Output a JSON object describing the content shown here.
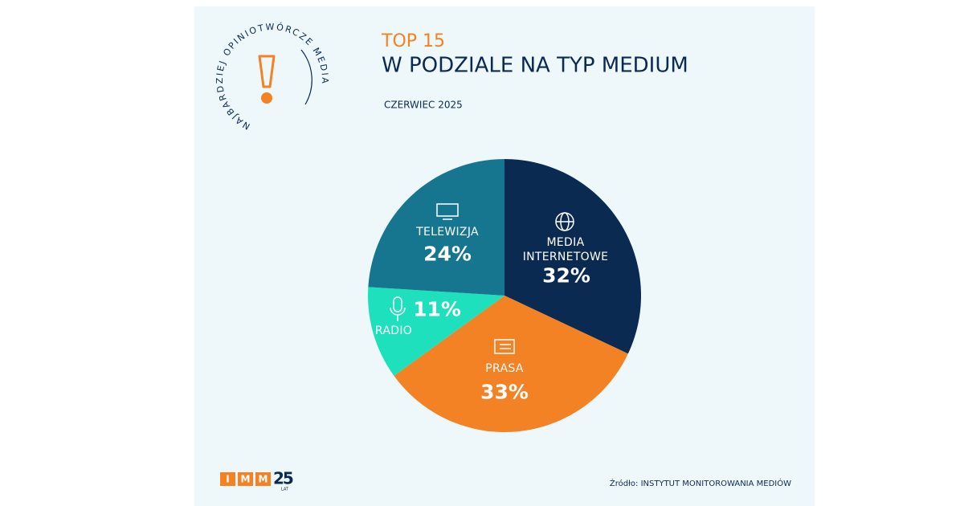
{
  "chart_data": {
    "type": "pie",
    "title": "TOP 15",
    "subtitle": "W PODZIALE NA TYP MEDIUM",
    "date": "CZERWIEC 2025",
    "categories": [
      "MEDIA INTERNETOWE",
      "PRASA",
      "RADIO",
      "TELEWIZJA"
    ],
    "values": [
      32,
      33,
      11,
      24
    ],
    "value_labels": [
      "32%",
      "33%",
      "11%",
      "24%"
    ],
    "colors": [
      "#0b2a52",
      "#f28224",
      "#1ee0bc",
      "#17768f"
    ],
    "source": "Źródło: INSTYTUT MONITOROWANIA MEDIÓW"
  },
  "badge": "NAJBARDZIEJ OPINIOTWÓRCZE MEDIA",
  "logo": {
    "letters": [
      "I",
      "M",
      "M"
    ],
    "number": "25",
    "sub": "LAT"
  }
}
